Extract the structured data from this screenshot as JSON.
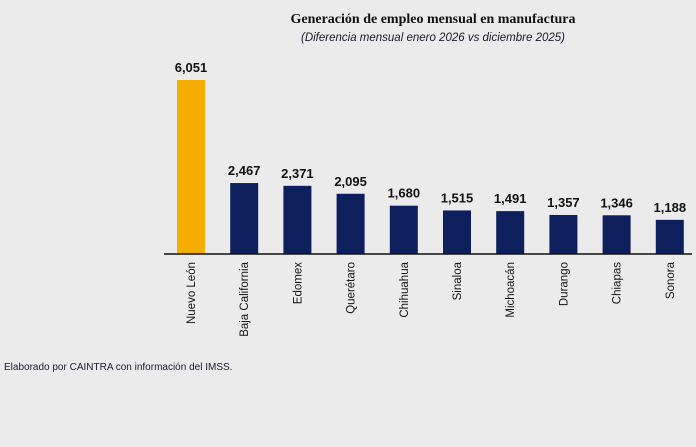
{
  "chart_data": {
    "type": "bar",
    "title": "Generación de empleo mensual en manufactura",
    "subtitle": "(Diferencia mensual enero 2026 vs diciembre 2025)",
    "categories": [
      "Nuevo León",
      "Baja California",
      "Edomex",
      "Querétaro",
      "Chihuahua",
      "Sinaloa",
      "Michoacán",
      "Durango",
      "Chiapas",
      "Sonora"
    ],
    "values": [
      6051,
      2467,
      2371,
      2095,
      1680,
      1515,
      1491,
      1357,
      1346,
      1188
    ],
    "data_labels": [
      "6,051",
      "2,467",
      "2,371",
      "2,095",
      "1,680",
      "1,515",
      "1,491",
      "1,357",
      "1,346",
      "1,188"
    ],
    "colors": {
      "highlight": "#f5ad00",
      "default": "#0d1f5c"
    },
    "grid": false,
    "legend": "none"
  },
  "footnote": "Elaborado por CAINTRA con información del IMSS."
}
